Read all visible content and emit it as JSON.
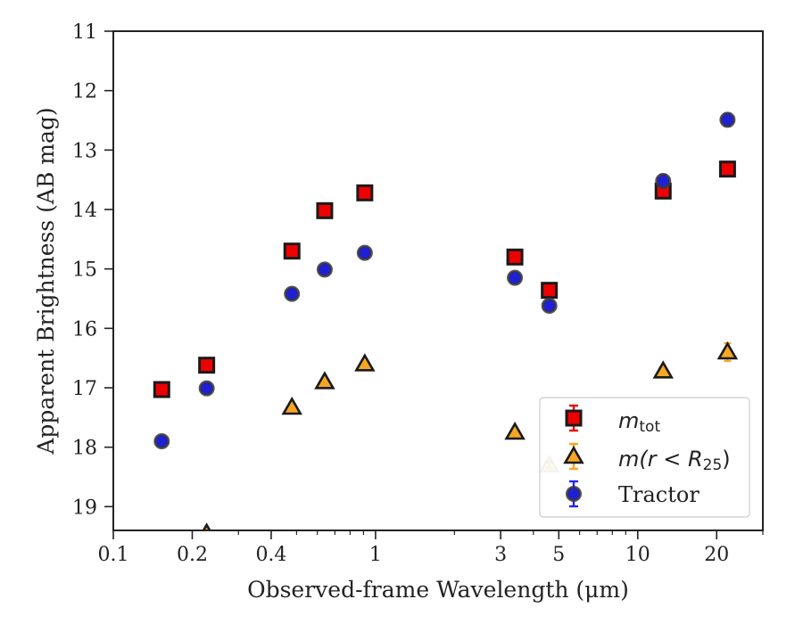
{
  "chart_data": {
    "type": "scatter",
    "xlabel": "Observed-frame Wavelength (μm)",
    "ylabel": "Apparent Brightness (AB mag)",
    "xscale": "log",
    "xlim": [
      0.1,
      30
    ],
    "ylim": [
      19.4,
      11
    ],
    "y_inverted": true,
    "grid": false,
    "legend_position": "lower-right",
    "x_ticks": [
      {
        "value": 0.1,
        "label": "0.1"
      },
      {
        "value": 0.2,
        "label": "0.2"
      },
      {
        "value": 0.4,
        "label": "0.4"
      },
      {
        "value": 1,
        "label": "1"
      },
      {
        "value": 3,
        "label": "3"
      },
      {
        "value": 5,
        "label": "5"
      },
      {
        "value": 10,
        "label": "10"
      },
      {
        "value": 20,
        "label": "20"
      }
    ],
    "x_minor_ticks": [
      0.3,
      0.5,
      0.6,
      0.7,
      0.8,
      0.9,
      2,
      4,
      6,
      7,
      8,
      9,
      30
    ],
    "y_ticks": [
      {
        "value": 11,
        "label": "11"
      },
      {
        "value": 12,
        "label": "12"
      },
      {
        "value": 13,
        "label": "13"
      },
      {
        "value": 14,
        "label": "14"
      },
      {
        "value": 15,
        "label": "15"
      },
      {
        "value": 16,
        "label": "16"
      },
      {
        "value": 17,
        "label": "17"
      },
      {
        "value": 18,
        "label": "18"
      },
      {
        "value": 19,
        "label": "19"
      }
    ],
    "series": [
      {
        "name": "m_tot",
        "label_main": "m",
        "label_sub": "tot",
        "marker": "square",
        "color": "#ee0000",
        "edge_color": "#1a1a1a",
        "points": [
          {
            "x": 0.153,
            "y": 17.03,
            "err": 0.05
          },
          {
            "x": 0.227,
            "y": 16.62,
            "err": 0.05
          },
          {
            "x": 0.48,
            "y": 14.7,
            "err": 0.05
          },
          {
            "x": 0.64,
            "y": 14.02,
            "err": 0.05
          },
          {
            "x": 0.91,
            "y": 13.72,
            "err": 0.05
          },
          {
            "x": 3.4,
            "y": 14.8,
            "err": 0.05
          },
          {
            "x": 4.6,
            "y": 15.36,
            "err": 0.05
          },
          {
            "x": 12.5,
            "y": 13.69,
            "err": 0.05
          },
          {
            "x": 22.0,
            "y": 13.32,
            "err": 0.05
          }
        ]
      },
      {
        "name": "m(r<R_25)",
        "label_main": "m(r < R",
        "label_sub": "25",
        "label_tail": ")",
        "marker": "triangle",
        "color": "#f5a623",
        "edge_color": "#1a1a1a",
        "points": [
          {
            "x": 0.227,
            "y": 19.45,
            "err": 0.05
          },
          {
            "x": 0.48,
            "y": 17.33,
            "err": 0.05
          },
          {
            "x": 0.64,
            "y": 16.9,
            "err": 0.05
          },
          {
            "x": 0.91,
            "y": 16.6,
            "err": 0.05
          },
          {
            "x": 3.4,
            "y": 17.75,
            "err": 0.05
          },
          {
            "x": 4.6,
            "y": 18.3,
            "err": 0.05
          },
          {
            "x": 12.5,
            "y": 16.72,
            "err": 0.07
          },
          {
            "x": 22.0,
            "y": 16.4,
            "err": 0.15
          }
        ]
      },
      {
        "name": "Tractor",
        "marker": "circle",
        "color": "#1f1fd6",
        "edge_color": "#3a3a3a",
        "points": [
          {
            "x": 0.153,
            "y": 17.9,
            "err": 0.08
          },
          {
            "x": 0.227,
            "y": 17.01,
            "err": 0.08
          },
          {
            "x": 0.48,
            "y": 15.42,
            "err": 0.08
          },
          {
            "x": 0.64,
            "y": 15.01,
            "err": 0.08
          },
          {
            "x": 0.91,
            "y": 14.73,
            "err": 0.08
          },
          {
            "x": 3.4,
            "y": 15.15,
            "err": 0.08
          },
          {
            "x": 4.6,
            "y": 15.62,
            "err": 0.08
          },
          {
            "x": 12.5,
            "y": 13.52,
            "err": 0.1
          },
          {
            "x": 22.0,
            "y": 12.49,
            "err": 0.1
          }
        ]
      }
    ]
  }
}
